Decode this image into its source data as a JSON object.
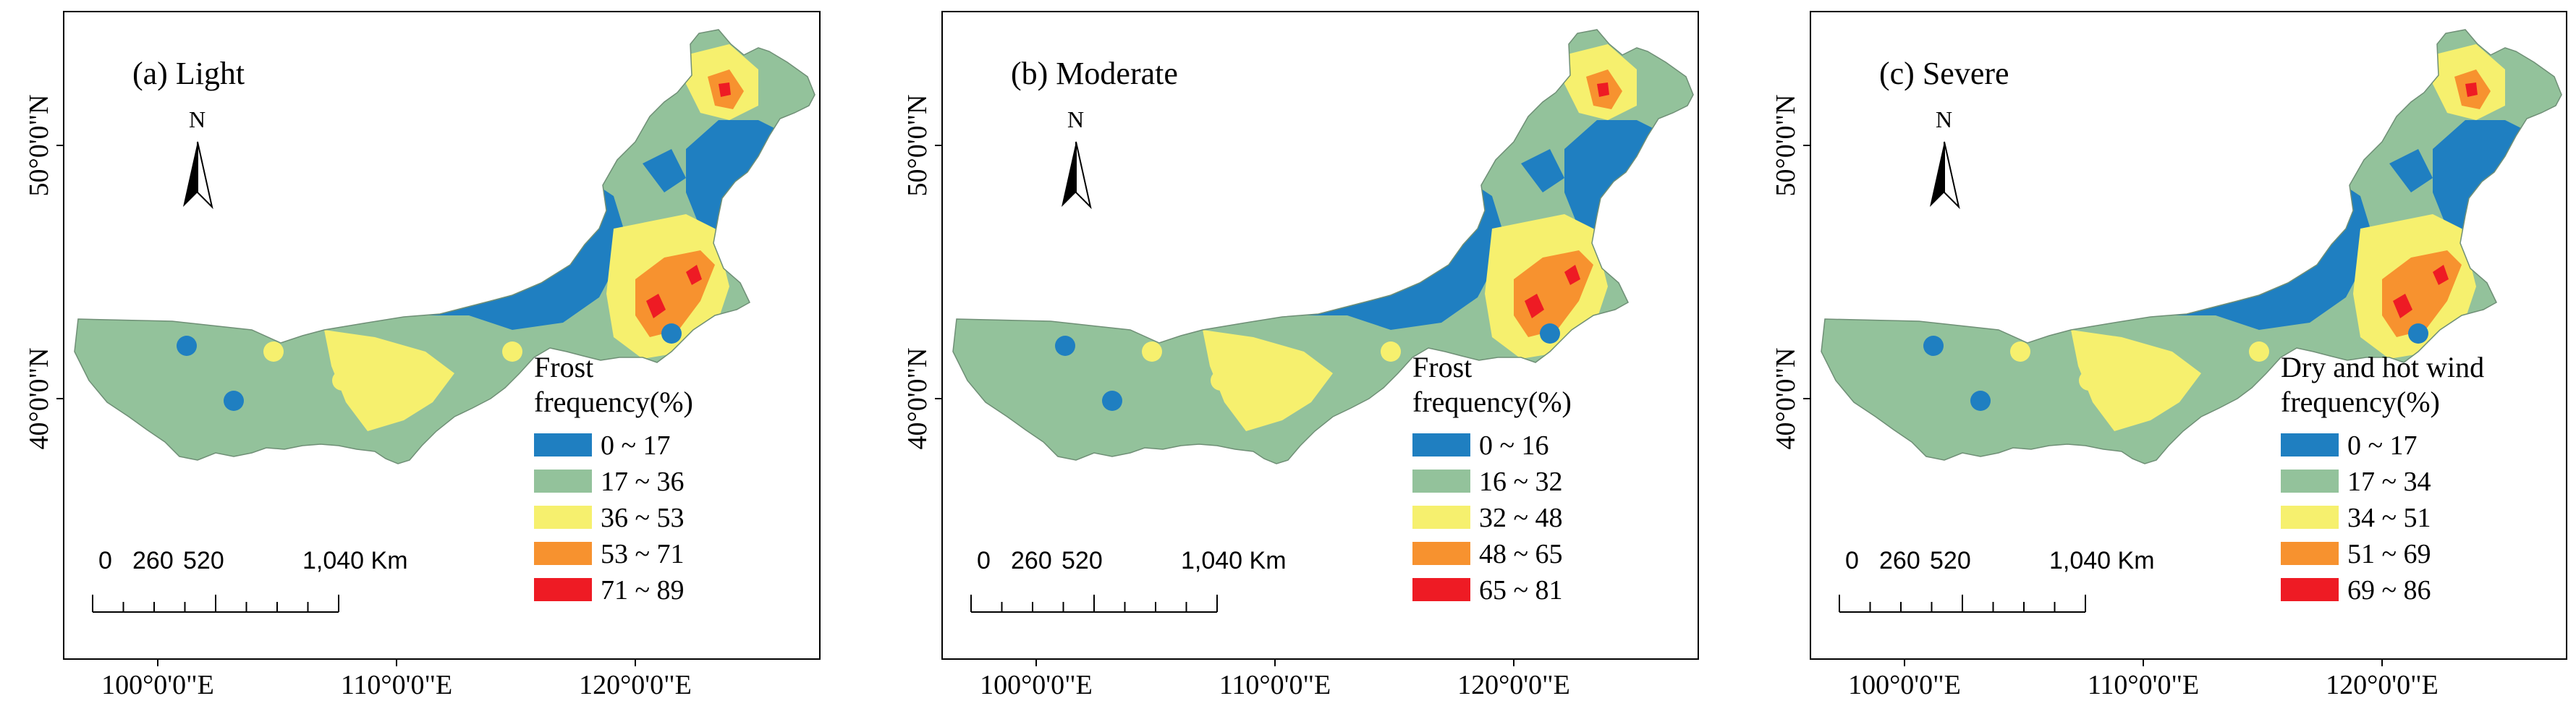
{
  "maps": [
    {
      "panel_label": "(a) Light",
      "legend_title_lines": [
        "Frost",
        "frequency(%)"
      ],
      "classes": [
        "0 ~ 17",
        "17 ~ 36",
        "36 ~ 53",
        "53 ~ 71",
        "71 ~ 89"
      ]
    },
    {
      "panel_label": "(b) Moderate",
      "legend_title_lines": [
        "Frost",
        "frequency(%)"
      ],
      "classes": [
        "0 ~ 16",
        "16 ~ 32",
        "32 ~ 48",
        "48 ~ 65",
        "65 ~ 81"
      ]
    },
    {
      "panel_label": "(c) Severe",
      "legend_title_lines": [
        "Dry and hot wind",
        "frequency(%)"
      ],
      "classes": [
        "0 ~ 17",
        "17 ~ 34",
        "34 ~ 51",
        "51 ~ 69",
        "69 ~ 86"
      ]
    }
  ],
  "class_colors": [
    "#1f7fc1",
    "#93c29b",
    "#f6f06e",
    "#f7922f",
    "#ee1b24"
  ],
  "north_arrow_label": "N",
  "scale_bar_labels": [
    "0",
    "260",
    "520",
    "1,040 Km"
  ],
  "x_ticks": [
    "100°0'0\"E",
    "110°0'0\"E",
    "120°0'0\"E"
  ],
  "y_ticks": [
    "50°0'0\"N",
    "40°0'0\"N"
  ]
}
